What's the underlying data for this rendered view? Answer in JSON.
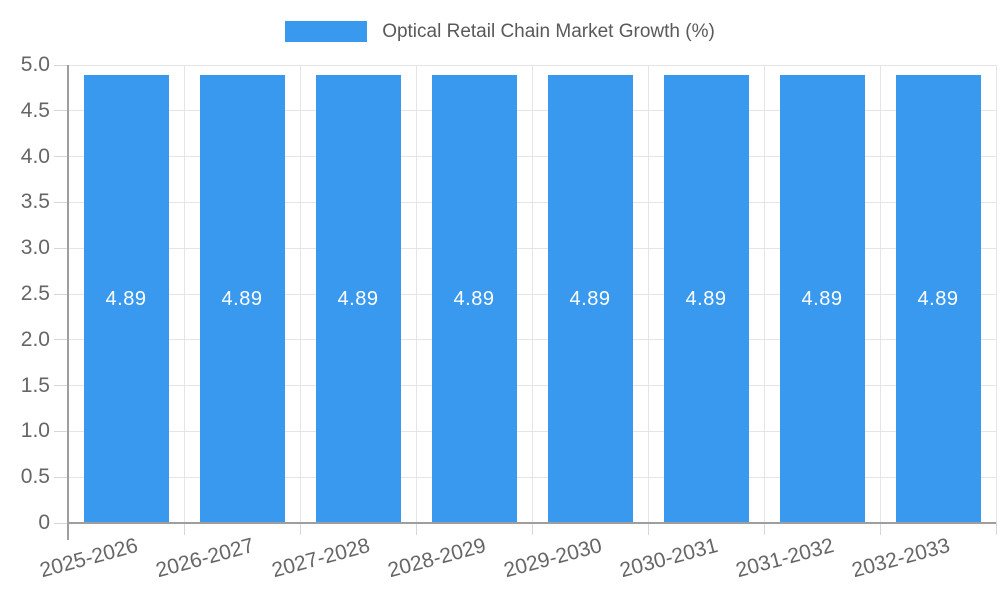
{
  "chart_data": {
    "type": "bar",
    "title": "Optical Retail Chain Market Growth (%)",
    "categories": [
      "2025-2026",
      "2026-2027",
      "2027-2028",
      "2028-2029",
      "2029-2030",
      "2030-2031",
      "2031-2032",
      "2032-2033"
    ],
    "values": [
      4.89,
      4.89,
      4.89,
      4.89,
      4.89,
      4.89,
      4.89,
      4.89
    ],
    "bar_labels": [
      "4.89",
      "4.89",
      "4.89",
      "4.89",
      "4.89",
      "4.89",
      "4.89",
      "4.89"
    ],
    "xlabel": "",
    "ylabel": "",
    "ylim": [
      0,
      5
    ],
    "ytick_step": 0.5,
    "ytick_labels": [
      "5.0",
      "4.5",
      "4.0",
      "3.5",
      "3.0",
      "2.5",
      "2.0",
      "1.5",
      "1.0",
      "0.5",
      "0"
    ],
    "grid": "on",
    "legend_position": "top",
    "colors": {
      "bar": "#3899ee",
      "bar_label_text": "#ffffff",
      "grid_line": "#e5e5e5",
      "tick_mark": "#d6d6d6",
      "axis_line": "#9e9e9e",
      "tick_text": "#666666",
      "legend_text": "#595959"
    }
  }
}
